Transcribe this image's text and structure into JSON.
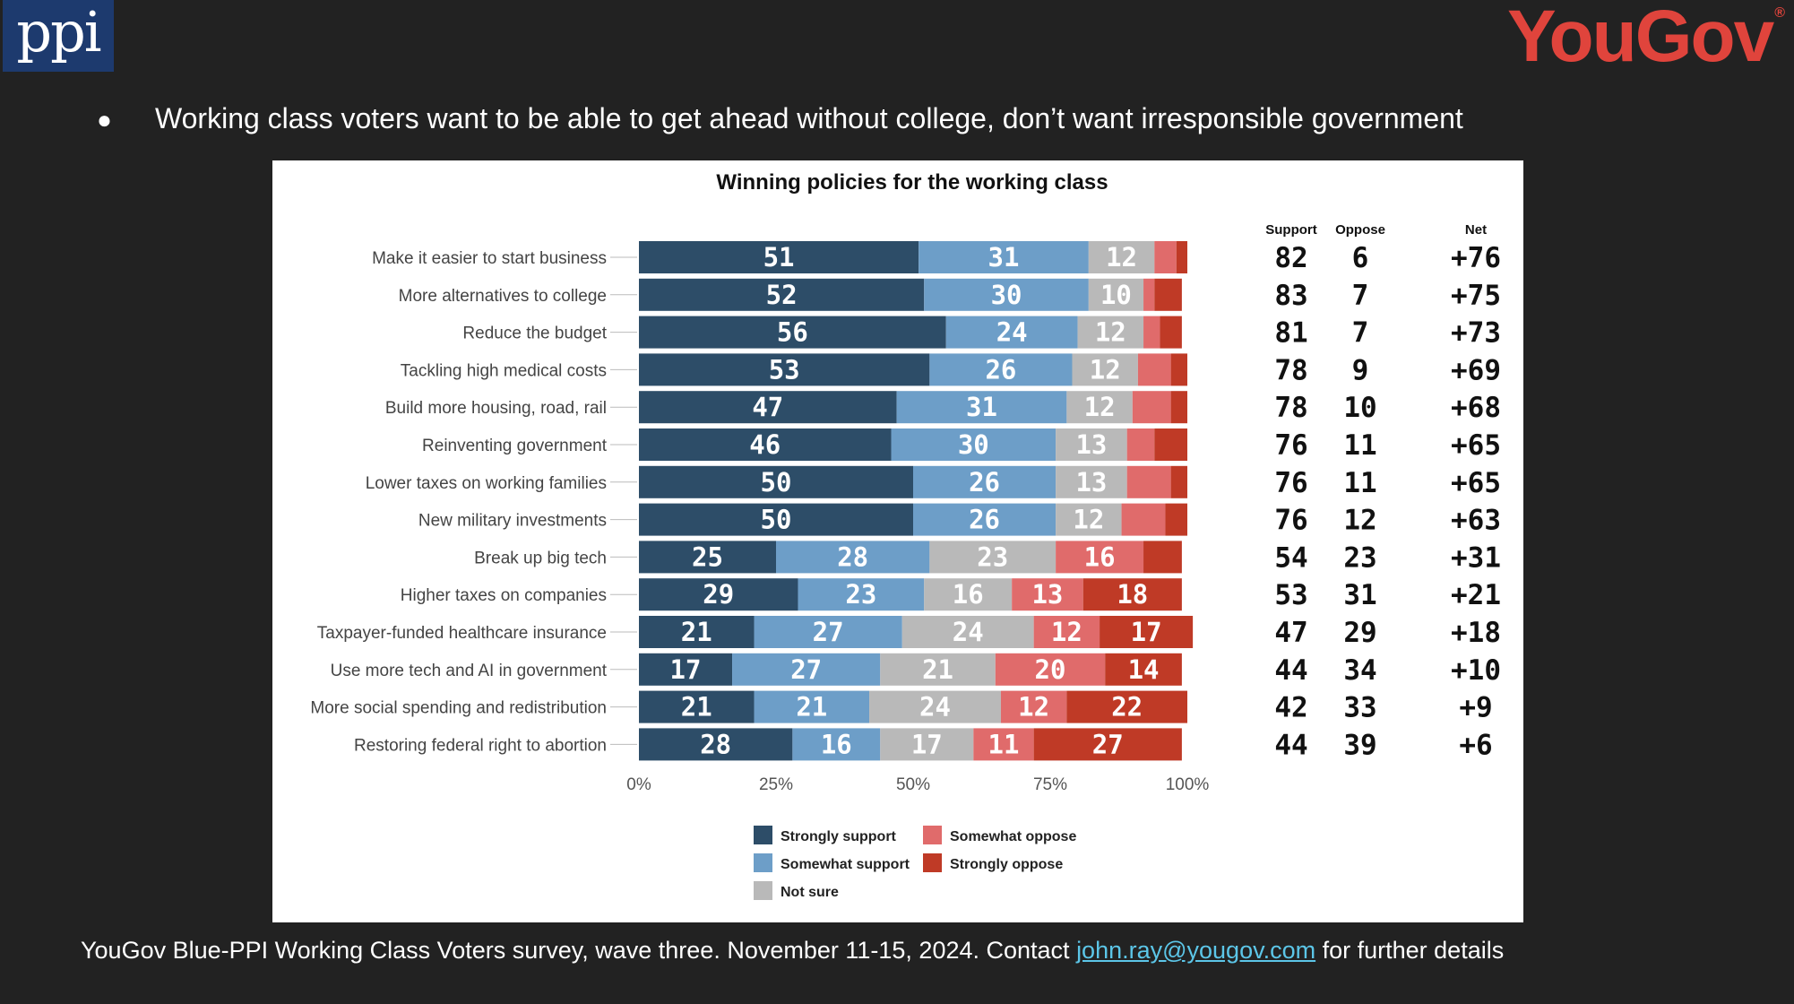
{
  "logos": {
    "left": "ppi",
    "right": "YouGov",
    "right_mark": "®"
  },
  "slide": {
    "bullet": "●",
    "headline": "Working class voters want to be able to get ahead without college, don’t want irresponsible government"
  },
  "footer": {
    "text_before": "YouGov Blue-PPI Working Class Voters survey, wave three. November 11-15, 2024. Contact ",
    "email": "john.ray@yougov.com",
    "text_after": " for further details"
  },
  "colors": {
    "strongly_support": "#2d4d68",
    "somewhat_support": "#6d9ec8",
    "not_sure": "#b9b9b9",
    "somewhat_oppose": "#e06b6b",
    "strongly_oppose": "#bf3a26"
  },
  "chart_data": {
    "type": "bar",
    "orientation": "horizontal",
    "stacked": true,
    "title": "Winning policies for the working class",
    "categories": [
      "Make it easier to start business",
      "More alternatives to college",
      "Reduce the budget",
      "Tackling high medical costs",
      "Build more housing, road, rail",
      "Reinventing government",
      "Lower taxes on working families",
      "New military investments",
      "Break up big tech",
      "Higher taxes on companies",
      "Taxpayer-funded healthcare insurance",
      "Use more tech and AI in government",
      "More social spending and redistribution",
      "Restoring federal right to abortion"
    ],
    "series": [
      {
        "name": "Strongly support",
        "values": [
          51,
          52,
          56,
          53,
          47,
          46,
          50,
          50,
          25,
          29,
          21,
          17,
          21,
          28
        ]
      },
      {
        "name": "Somewhat support",
        "values": [
          31,
          30,
          24,
          26,
          31,
          30,
          26,
          26,
          28,
          23,
          27,
          27,
          21,
          16
        ]
      },
      {
        "name": "Not sure",
        "values": [
          12,
          10,
          12,
          12,
          12,
          13,
          13,
          12,
          23,
          16,
          24,
          21,
          24,
          17
        ]
      },
      {
        "name": "Somewhat oppose",
        "values": [
          4,
          2,
          3,
          6,
          7,
          5,
          8,
          8,
          16,
          13,
          12,
          20,
          12,
          11
        ]
      },
      {
        "name": "Strongly oppose",
        "values": [
          2,
          5,
          4,
          3,
          3,
          6,
          3,
          4,
          7,
          18,
          17,
          14,
          22,
          27
        ]
      }
    ],
    "xlim": [
      0,
      100
    ],
    "x_ticks": [
      "0%",
      "25%",
      "50%",
      "75%",
      "100%"
    ],
    "label_min": 10,
    "table": {
      "headers": [
        "Support",
        "Oppose",
        "Net"
      ],
      "support": [
        82,
        83,
        81,
        78,
        78,
        76,
        76,
        76,
        54,
        53,
        47,
        44,
        42,
        44
      ],
      "oppose": [
        6,
        7,
        7,
        9,
        10,
        11,
        11,
        12,
        23,
        31,
        29,
        34,
        33,
        39
      ],
      "net": [
        "+76",
        "+75",
        "+73",
        "+69",
        "+68",
        "+65",
        "+65",
        "+63",
        "+31",
        "+21",
        "+18",
        "+10",
        "+9",
        "+6"
      ]
    },
    "legend": {
      "placement": "bottom",
      "items": [
        "Strongly support",
        "Somewhat oppose",
        "Somewhat support",
        "Strongly oppose",
        "Not sure"
      ]
    }
  }
}
